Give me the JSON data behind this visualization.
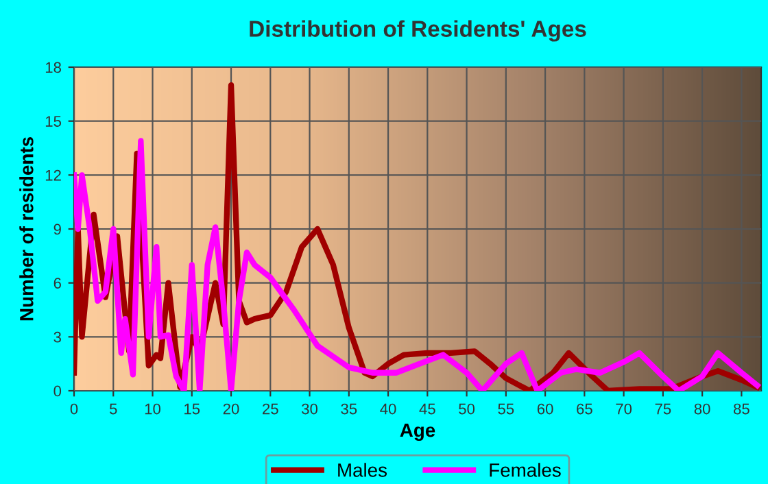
{
  "chart_data": {
    "type": "line",
    "title": "Distribution of Residents' Ages",
    "xlabel": "Age",
    "ylabel": "Number of residents",
    "xlim": [
      0,
      87.5
    ],
    "xticks": [
      0,
      5,
      10,
      15,
      20,
      25,
      30,
      35,
      40,
      45,
      50,
      55,
      60,
      65,
      70,
      75,
      80,
      85
    ],
    "ylim": [
      0,
      18
    ],
    "yticks": [
      0,
      3,
      6,
      9,
      12,
      15,
      18
    ],
    "grid": true,
    "legend": "bottom",
    "marker": "none",
    "line_style": "solid",
    "series": [
      {
        "name": "Males",
        "color": "#a00000",
        "x": [
          0,
          0.5,
          1,
          2.5,
          4,
          5.5,
          7,
          8,
          9.5,
          10.5,
          11,
          12,
          13.5,
          15,
          16,
          18,
          19,
          20,
          21,
          22,
          23,
          25,
          27,
          29,
          31,
          33,
          35,
          37,
          38,
          40,
          42,
          45,
          48,
          51,
          53,
          55,
          58,
          61,
          63,
          66,
          68,
          72,
          76,
          80,
          82,
          85,
          87
        ],
        "values": [
          1,
          9,
          3,
          9.8,
          5.2,
          8.6,
          2.2,
          13.2,
          1.4,
          2,
          1.8,
          6,
          0.2,
          3,
          2.2,
          6,
          3.7,
          17,
          5,
          3.8,
          4,
          4.2,
          5.5,
          8,
          9,
          7,
          3.5,
          1,
          0.8,
          1.5,
          2,
          2.1,
          2.1,
          2.2,
          1.5,
          0.7,
          0,
          1,
          2.1,
          0.8,
          0,
          0.1,
          0.1,
          0.8,
          1.1,
          0.6,
          0.2
        ]
      },
      {
        "name": "Females",
        "color": "#ff00ff",
        "x": [
          0,
          0.5,
          1,
          2,
          3,
          4,
          5,
          6,
          6.5,
          7.5,
          8.5,
          9.5,
          10.5,
          11,
          12,
          13,
          14,
          15,
          16,
          17,
          18,
          19,
          20,
          21,
          22,
          23,
          25,
          28,
          31,
          35,
          38,
          41,
          44,
          47,
          50,
          52,
          55,
          57,
          59,
          62,
          64,
          67,
          70,
          72,
          75,
          77,
          80,
          82,
          85,
          87
        ],
        "values": [
          12,
          9,
          12,
          9,
          5,
          5.5,
          9,
          2.1,
          4,
          0.9,
          13.9,
          3,
          8,
          3,
          3.1,
          0.8,
          0,
          7,
          0,
          7,
          9.1,
          5,
          0,
          5,
          7.7,
          7,
          6.3,
          4.5,
          2.5,
          1.3,
          1,
          1,
          1.5,
          2,
          1,
          0,
          1.5,
          2.1,
          0,
          1,
          1.2,
          1,
          1.6,
          2.1,
          0.8,
          0,
          0.8,
          2.1,
          1,
          0.3
        ]
      }
    ]
  }
}
